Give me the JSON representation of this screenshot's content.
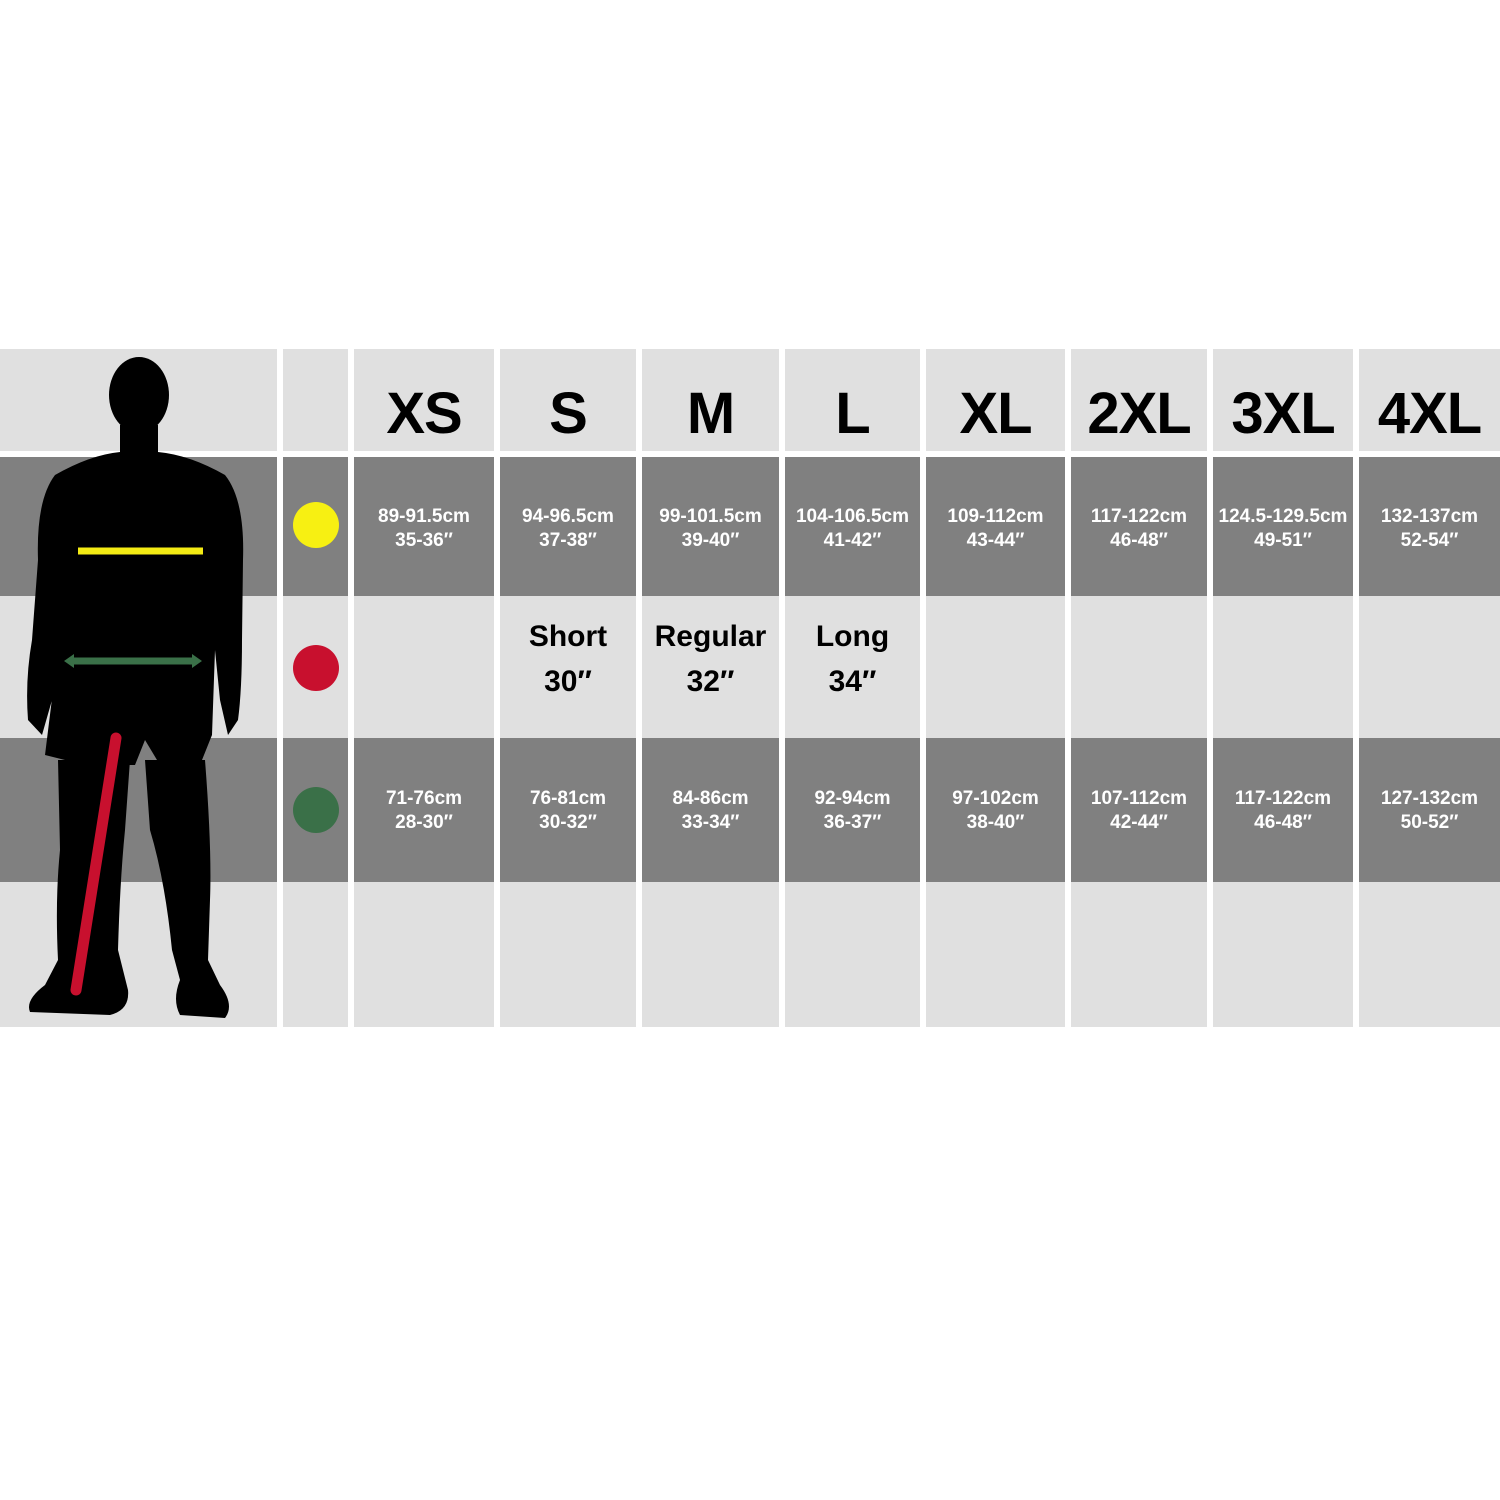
{
  "table": {
    "headers": [
      "XS",
      "S",
      "M",
      "L",
      "XL",
      "2XL",
      "3XL",
      "4XL"
    ],
    "chest": [
      [
        "89-91.5cm",
        "35-36″"
      ],
      [
        "94-96.5cm",
        "37-38″"
      ],
      [
        "99-101.5cm",
        "39-40″"
      ],
      [
        "104-106.5cm",
        "41-42″"
      ],
      [
        "109-112cm",
        "43-44″"
      ],
      [
        "117-122cm",
        "46-48″"
      ],
      [
        "124.5-129.5cm",
        "49-51″"
      ],
      [
        "132-137cm",
        "52-54″"
      ]
    ],
    "inside_leg": [
      [
        "Short",
        "30″"
      ],
      [
        "Regular",
        "32″"
      ],
      [
        "Long",
        "34″"
      ]
    ],
    "waist": [
      [
        "71-76cm",
        "28-30″"
      ],
      [
        "76-81cm",
        "30-32″"
      ],
      [
        "84-86cm",
        "33-34″"
      ],
      [
        "92-94cm",
        "36-37″"
      ],
      [
        "97-102cm",
        "38-40″"
      ],
      [
        "107-112cm",
        "42-44″"
      ],
      [
        "117-122cm",
        "46-48″"
      ],
      [
        "127-132cm",
        "50-52″"
      ]
    ]
  }
}
